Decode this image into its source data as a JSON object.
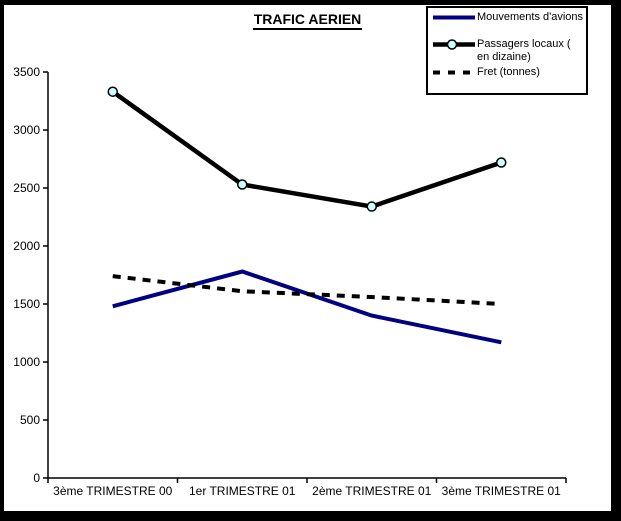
{
  "window": {
    "frame_color": "#000000",
    "plot_background": "#FFFFFF"
  },
  "chart_data": {
    "type": "line",
    "title": "TRAFIC AERIEN",
    "xlabel": "",
    "ylabel": "",
    "categories": [
      "3ème TRIMESTRE 00",
      "1er TRIMESTRE 01",
      "2ème TRIMESTRE 01",
      "3ème TRIMESTRE 01"
    ],
    "series": [
      {
        "name": "Mouvements d'avions",
        "values": [
          1480,
          1780,
          1400,
          1170
        ],
        "color": "#000080",
        "line_style": "solid",
        "marker": "none"
      },
      {
        "name": "Passagers locaux ( en dizaine)",
        "values": [
          3330,
          2530,
          2340,
          2720
        ],
        "color": "#000000",
        "line_style": "solid",
        "marker": "circle",
        "marker_fill": "#CCFFFF"
      },
      {
        "name": "Fret (tonnes)",
        "values": [
          1740,
          1610,
          1560,
          1500
        ],
        "color": "#000000",
        "line_style": "dashed",
        "marker": "none"
      }
    ],
    "ylim": [
      0,
      3500
    ],
    "yticks": [
      0,
      500,
      1000,
      1500,
      2000,
      2500,
      3000,
      3500
    ],
    "grid": false,
    "legend_position": "top-right",
    "axis_color": "#000000"
  }
}
